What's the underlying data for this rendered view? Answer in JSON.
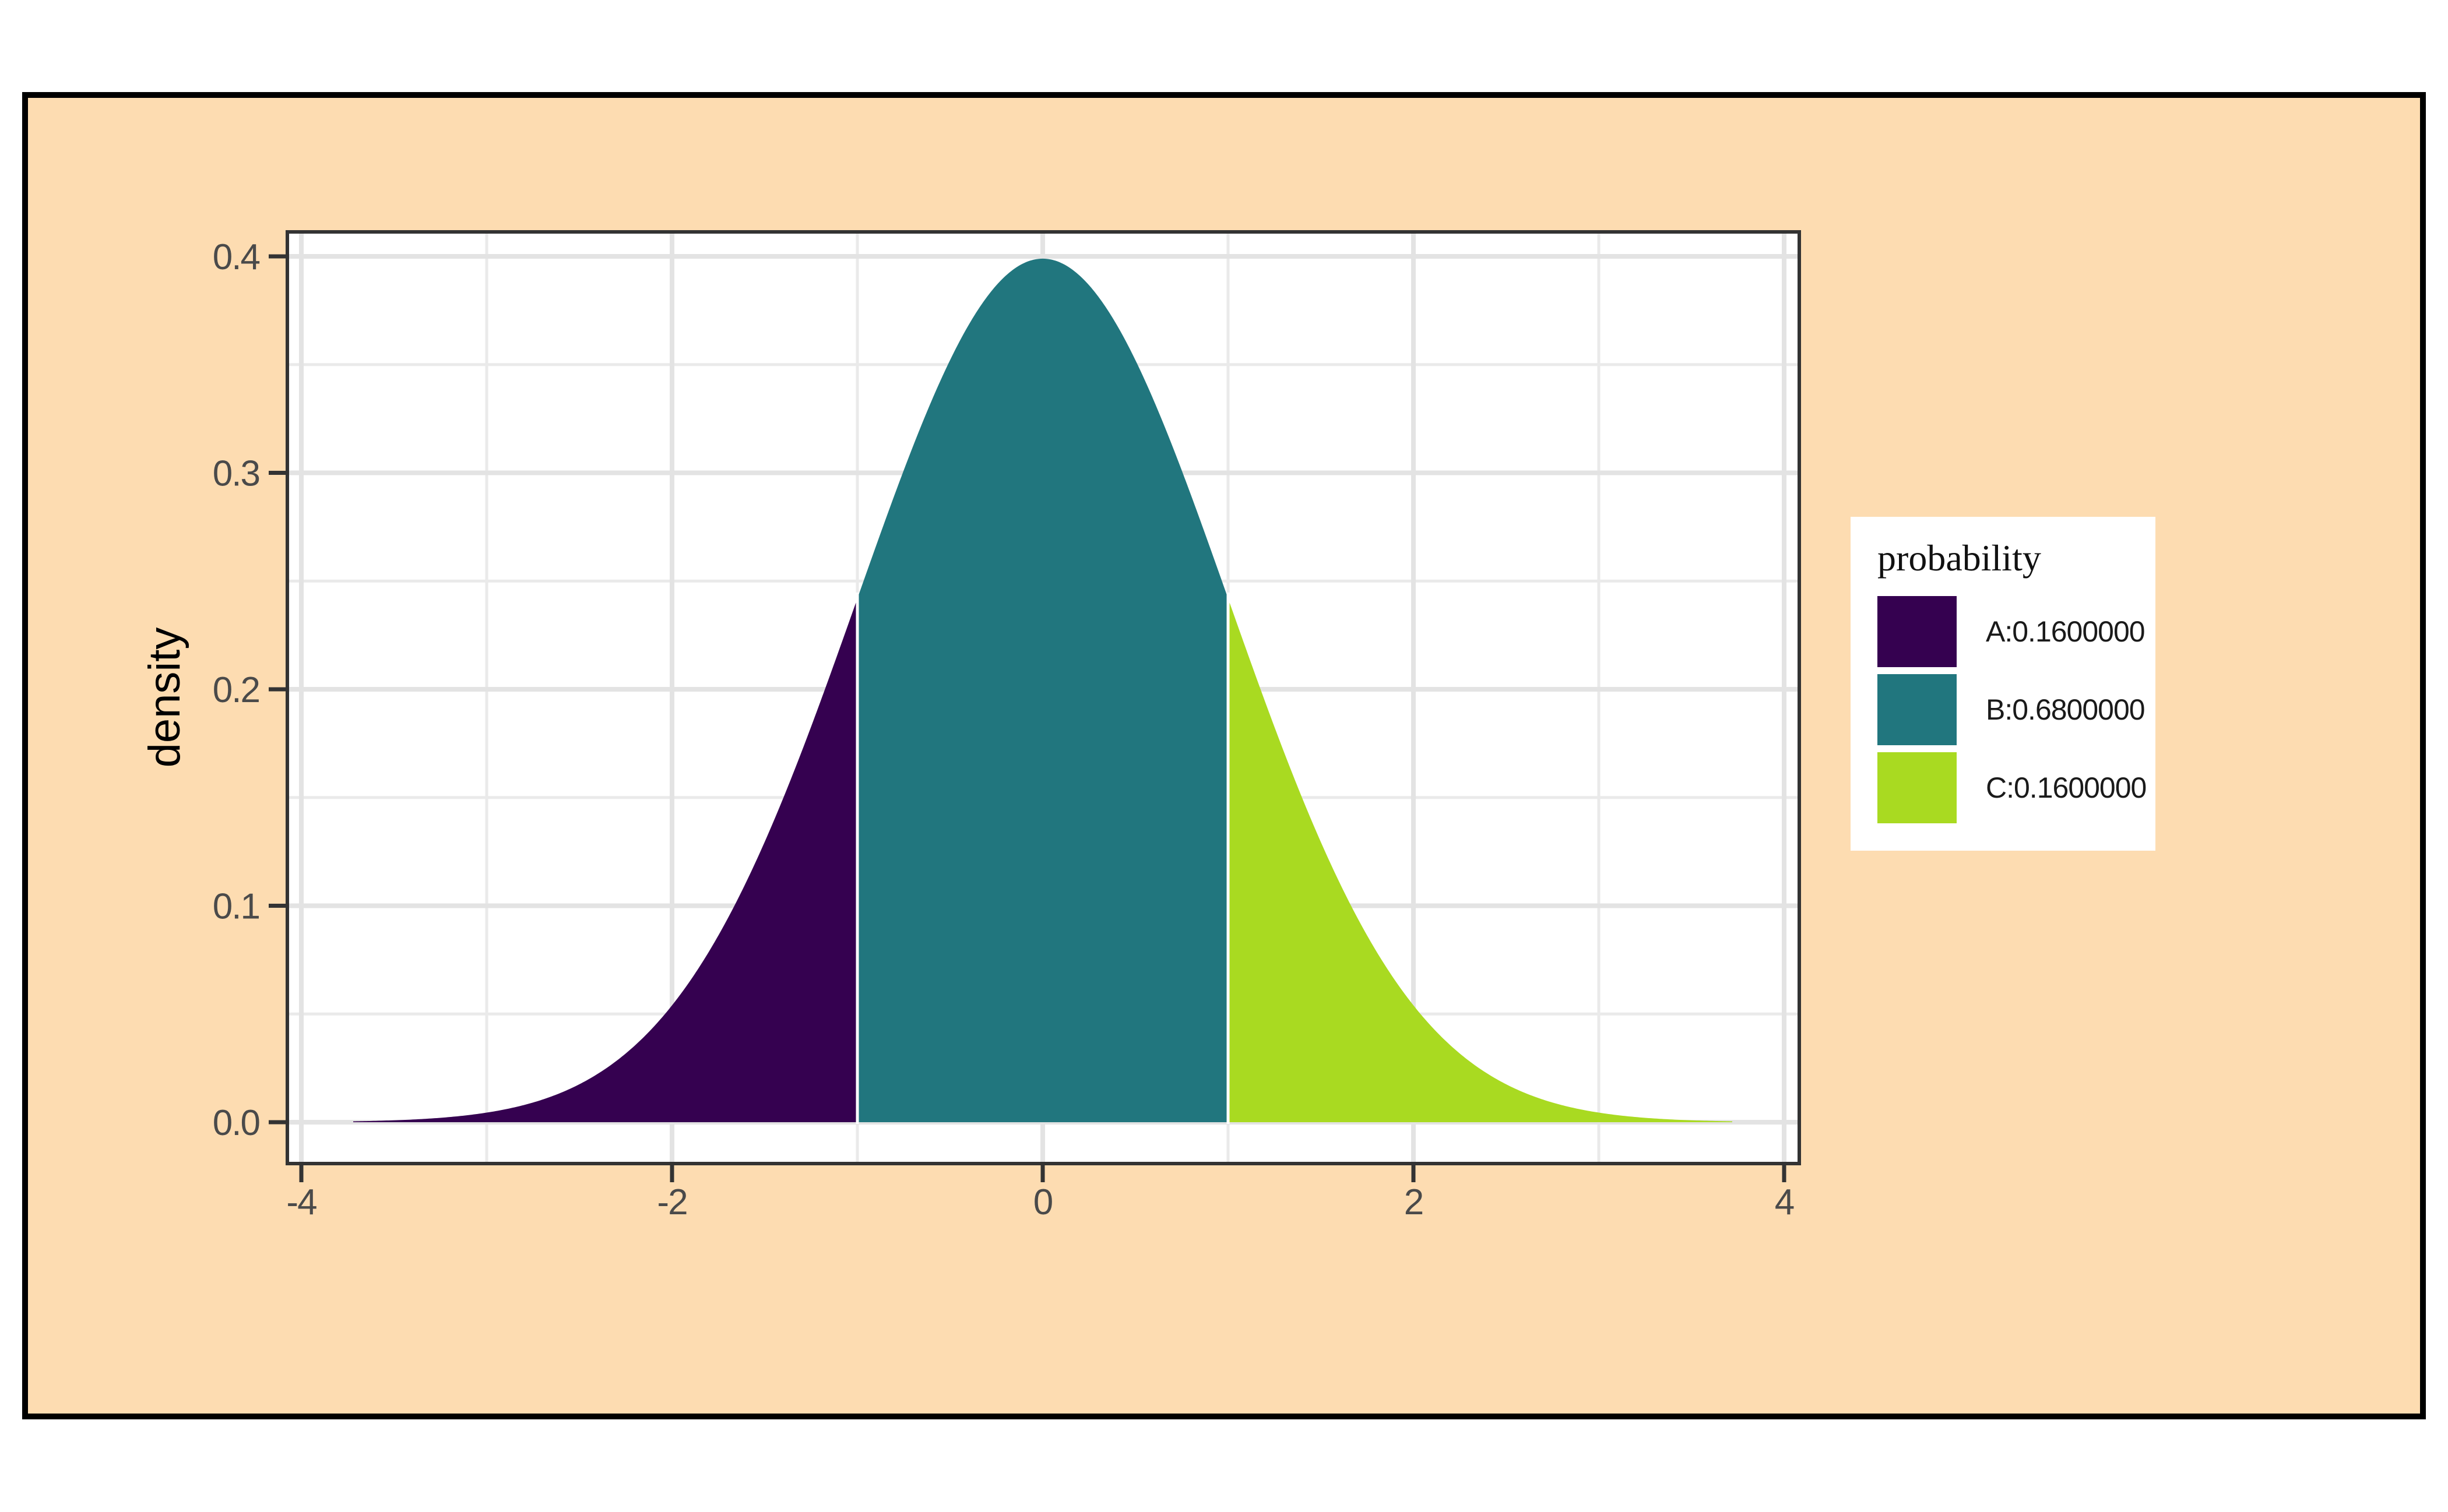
{
  "page": {
    "background": "#FFFFFF"
  },
  "frame": {
    "background": "#FDDCB1",
    "border_color": "#000000"
  },
  "panel": {
    "background": "#FFFFFF",
    "border_color": "#333333",
    "grid_major_color": "#E3E3E3",
    "grid_minor_color": "#EAEAEA",
    "separator_color": "#FFFFFF"
  },
  "axes": {
    "y_title": "density",
    "y_title_color": "#000000",
    "tick_color": "#333333",
    "tick_label_color": "#4A4A4A"
  },
  "legend": {
    "title": "probability",
    "background": "#FFFFFF",
    "title_color": "#111111",
    "label_color": "#1A1A1A",
    "entries": [
      {
        "label": "A:0.1600000",
        "color": "#350150"
      },
      {
        "label": "B:0.6800000",
        "color": "#21767E"
      },
      {
        "label": "C:0.1600000",
        "color": "#A9DA21"
      }
    ]
  },
  "chart_data": {
    "type": "area",
    "title": "",
    "xlabel": "",
    "ylabel": "density",
    "distribution": "standard normal density",
    "mean": 0,
    "sd": 1,
    "peak_density": 0.3989,
    "x_plot_range": [
      -3.72,
      3.72
    ],
    "xlim": [
      -4.08,
      4.08
    ],
    "ylim": [
      -0.019,
      0.41
    ],
    "grid": true,
    "legend_position": "right",
    "legend_title": "probability",
    "x_ticks": [
      "-4",
      "-2",
      "0",
      "2",
      "4"
    ],
    "x_tick_values": [
      -4,
      -2,
      0,
      2,
      4
    ],
    "x_minor_gridlines": [
      -3,
      -1,
      1,
      3
    ],
    "y_ticks": [
      "0.0",
      "0.1",
      "0.2",
      "0.3",
      "0.4"
    ],
    "y_tick_values": [
      0,
      0.1,
      0.2,
      0.3,
      0.4
    ],
    "y_minor_gridlines": [
      0.05,
      0.15,
      0.25,
      0.35
    ],
    "series": [
      {
        "name": "A:0.1600000",
        "region": [
          -3.72,
          -1
        ],
        "probability": 0.16,
        "color": "#350150"
      },
      {
        "name": "B:0.6800000",
        "region": [
          -1,
          1
        ],
        "probability": 0.68,
        "color": "#21767E"
      },
      {
        "name": "C:0.1600000",
        "region": [
          1,
          3.72
        ],
        "probability": 0.16,
        "color": "#A9DA21"
      }
    ],
    "curve_points": [
      [
        -3.5,
        0.0009
      ],
      [
        -3.0,
        0.0044
      ],
      [
        -2.5,
        0.0175
      ],
      [
        -2.0,
        0.054
      ],
      [
        -1.5,
        0.1295
      ],
      [
        -1.0,
        0.242
      ],
      [
        -0.5,
        0.3521
      ],
      [
        0.0,
        0.3989
      ],
      [
        0.5,
        0.3521
      ],
      [
        1.0,
        0.242
      ],
      [
        1.5,
        0.1295
      ],
      [
        2.0,
        0.054
      ],
      [
        2.5,
        0.0175
      ],
      [
        3.0,
        0.0044
      ],
      [
        3.5,
        0.0009
      ]
    ]
  }
}
